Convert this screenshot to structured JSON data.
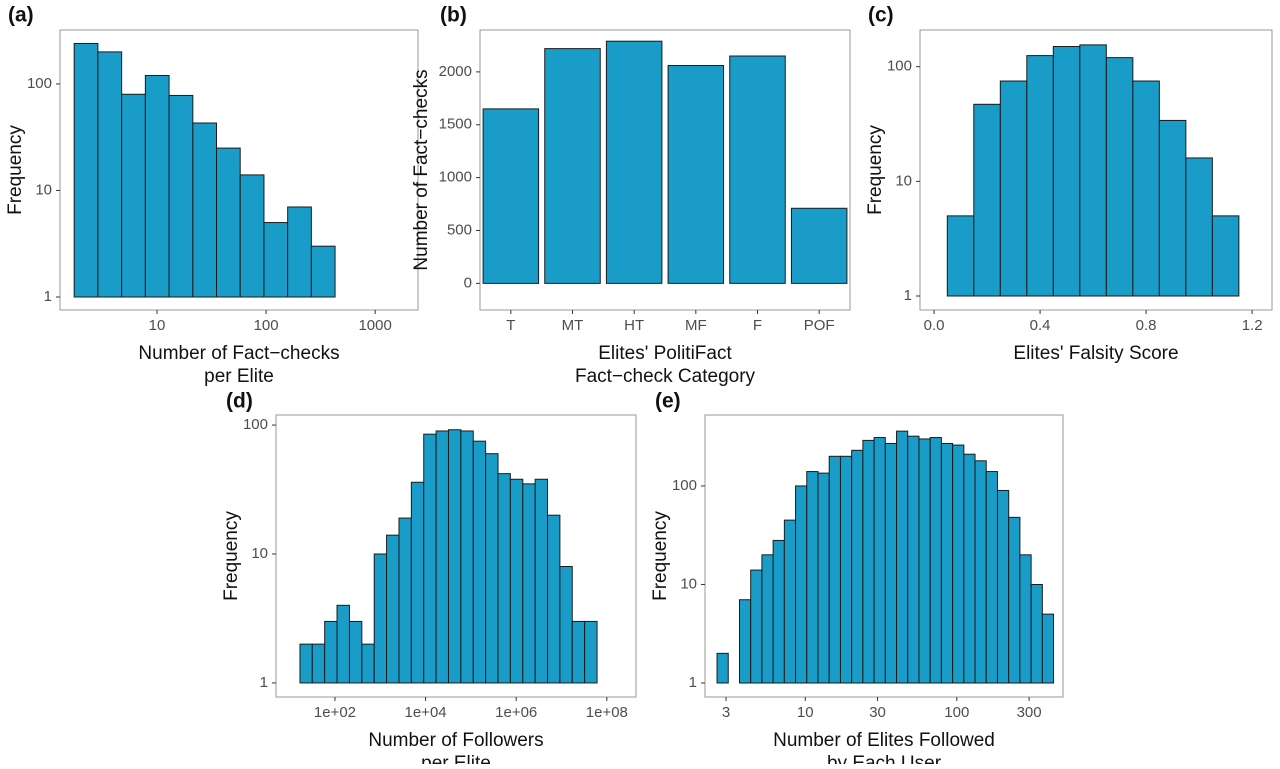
{
  "chart_data": [
    {
      "type": "histogram",
      "panel": "(a)",
      "xlabel": [
        "Number of Fact−checks",
        "per Elite"
      ],
      "ylabel": "Frequency",
      "bins": [
        1.74,
        2.87,
        4.74,
        7.82,
        12.9,
        21.3,
        35.1,
        57.9,
        95.6,
        157.7,
        260,
        429,
        708,
        1169,
        1929
      ],
      "values": [
        240,
        200,
        80,
        120,
        78,
        43,
        25,
        14,
        5,
        7,
        3,
        null,
        1,
        1
      ],
      "color": "#1a9cc9",
      "xscale": "log",
      "yscale": "log",
      "xlim": [
        1.29,
        2470
      ],
      "xticks": [
        10,
        100,
        1000
      ],
      "ylim": [
        0.755,
        321
      ],
      "yticks": [
        1,
        10,
        100
      ]
    },
    {
      "type": "bar",
      "panel": "(b)",
      "xlabel": [
        "Elites' PolitiFact",
        "Fact−check Category"
      ],
      "ylabel": "Number of Fact−checks",
      "categories": [
        "T",
        "MT",
        "HT",
        "MF",
        "F",
        "POF"
      ],
      "values": [
        1650,
        2220,
        2290,
        2060,
        2150,
        710
      ],
      "color": "#1a9cc9",
      "ylim": [
        -252,
        2396
      ],
      "yticks": [
        0,
        500,
        1000,
        1500,
        2000
      ]
    },
    {
      "type": "histogram",
      "panel": "(c)",
      "xlabel": [
        "Elites' Falsity Score"
      ],
      "ylabel": "Frequency",
      "bins": [
        0.05,
        0.15,
        0.25,
        0.35,
        0.45,
        0.55,
        0.65,
        0.75,
        0.85,
        0.95,
        1.05,
        1.15
      ],
      "values": [
        5,
        47,
        75,
        125,
        150,
        155,
        120,
        75,
        34,
        16,
        5
      ],
      "color": "#1a9cc9",
      "yscale": "log",
      "xlim": [
        -0.053,
        1.275
      ],
      "xticks": [
        {
          "value": 0,
          "label": "0.0"
        },
        0.4,
        0.8,
        1.2
      ],
      "ylim": [
        0.755,
        209
      ],
      "yticks": [
        1,
        10,
        100
      ]
    },
    {
      "type": "histogram",
      "panel": "(d)",
      "xlabel": [
        "Number of Followers",
        "per Elite"
      ],
      "ylabel": "Frequency",
      "bins": [
        16.9,
        31.6,
        59.3,
        111,
        209,
        392,
        735,
        1377,
        2588,
        4853,
        9100,
        17060,
        32000,
        60100,
        112700,
        211300,
        396300,
        743000,
        1396000,
        2618000,
        4909000,
        9204000,
        17260000,
        32360000,
        60810000,
        114000000,
        213800000
      ],
      "values": [
        2,
        2,
        3,
        4,
        3,
        2,
        10,
        14,
        19,
        36,
        85,
        90,
        92,
        90,
        75,
        60,
        42,
        38,
        35,
        38,
        20,
        8,
        3,
        3,
        null,
        1
      ],
      "color": "#1a9cc9",
      "xscale": "log",
      "yscale": "log",
      "xlim": [
        5,
        440000000
      ],
      "xticks": [
        {
          "value": 100,
          "label": "1e+02"
        },
        {
          "value": 10000,
          "label": "1e+04"
        },
        {
          "value": 1000000,
          "label": "1e+06"
        },
        {
          "value": 100000000,
          "label": "1e+08"
        }
      ],
      "ylim": [
        0.778,
        119.7
      ],
      "yticks": [
        1,
        10,
        100
      ]
    },
    {
      "type": "histogram",
      "panel": "(e)",
      "xlabel": [
        "Number of Elites Followed",
        "by Each User"
      ],
      "ylabel": "Frequency",
      "bins": [
        2.618,
        3.104,
        3.681,
        4.365,
        5.176,
        6.138,
        7.279,
        8.631,
        10.23,
        12.14,
        14.39,
        17.07,
        20.24,
        24.0,
        28.46,
        33.75,
        40.02,
        47.45,
        56.27,
        66.73,
        79.12,
        93.83,
        111.3,
        131.9,
        156.4,
        185.5,
        220.0,
        260.8,
        309.3,
        366.8,
        434.9
      ],
      "values": [
        2,
        null,
        7,
        14,
        20,
        28,
        45,
        100,
        140,
        135,
        200,
        200,
        230,
        290,
        310,
        270,
        360,
        320,
        300,
        310,
        270,
        260,
        210,
        180,
        140,
        90,
        48,
        20,
        10,
        5
      ],
      "color": "#1a9cc9",
      "xscale": "log",
      "yscale": "log",
      "xlim": [
        2.18,
        502
      ],
      "xticks": [
        3,
        10,
        30,
        100,
        300
      ],
      "ylim": [
        0.721,
        525
      ],
      "yticks": [
        1,
        10,
        100
      ]
    }
  ]
}
